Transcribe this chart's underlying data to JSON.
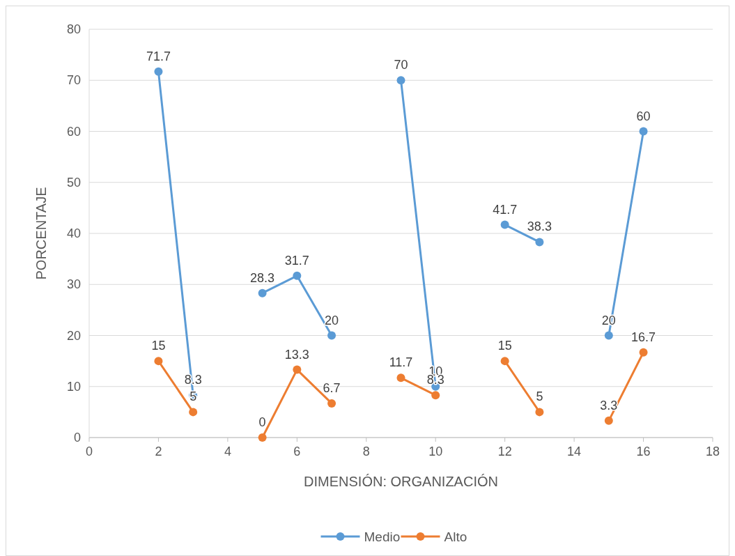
{
  "chart_data": {
    "type": "line",
    "xlabel": "DIMENSIÓN: ORGANIZACIÓN",
    "ylabel": "PORCENTAJE",
    "x": [
      2,
      3,
      4,
      5,
      6,
      7,
      8,
      9,
      10,
      11,
      12,
      13,
      14,
      15,
      16
    ],
    "series": [
      {
        "name": "Medio",
        "color": "#5b9bd5",
        "values": [
          71.7,
          8.3,
          null,
          28.3,
          31.7,
          20,
          null,
          70,
          10,
          null,
          41.7,
          38.3,
          null,
          20,
          60
        ]
      },
      {
        "name": "Alto",
        "color": "#ed7d31",
        "values": [
          15,
          5,
          null,
          0,
          13.3,
          6.7,
          null,
          11.7,
          8.3,
          null,
          15,
          5,
          null,
          3.3,
          16.7
        ]
      }
    ],
    "xlim": [
      0,
      18
    ],
    "xticks": [
      0,
      2,
      4,
      6,
      8,
      10,
      12,
      14,
      16,
      18
    ],
    "ylim": [
      0,
      80
    ],
    "yticks": [
      0,
      10,
      20,
      30,
      40,
      50,
      60,
      70,
      80
    ],
    "grid": "y",
    "legend": "bottom",
    "marker": "circle",
    "line_style": "solid",
    "data_labels": true
  }
}
